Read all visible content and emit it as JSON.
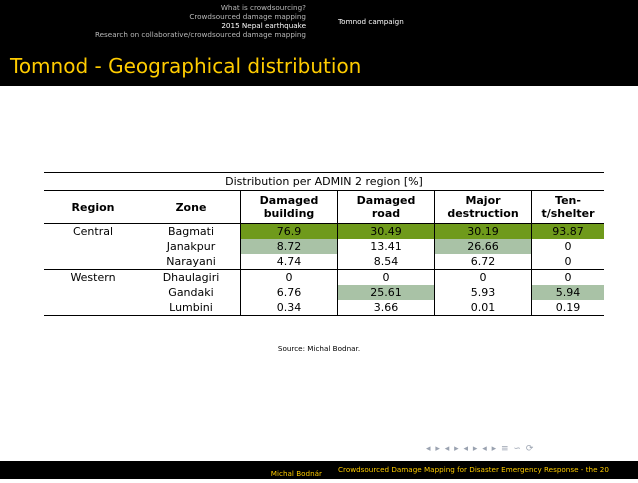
{
  "nav": {
    "sections": [
      {
        "label": "What is crowdsourcing?"
      },
      {
        "label": "Crowdsourced damage mapping"
      },
      {
        "label": "2015 Nepal earthquake"
      },
      {
        "label": "Research on collaborative/crowdsourced damage mapping"
      }
    ],
    "current_subsection": "Tomnod campaign"
  },
  "slide": {
    "title": "Tomnod - Geographical distribution",
    "source": "Source: Michal Bodnar."
  },
  "table": {
    "caption": "Distribution per ADMIN 2 region [%]",
    "headers": {
      "region": "Region",
      "zone": "Zone",
      "c1a": "Damaged",
      "c1b": "building",
      "c2a": "Damaged",
      "c2b": "road",
      "c3a": "Major",
      "c3b": "destruction",
      "c4a": "Ten-",
      "c4b": "t/shelter"
    },
    "rows": [
      {
        "region": "Central",
        "zone": "Bagmati",
        "building": "76.9",
        "road": "30.49",
        "major": "30.19",
        "tent": "93.87"
      },
      {
        "region": "",
        "zone": "Janakpur",
        "building": "8.72",
        "road": "13.41",
        "major": "26.66",
        "tent": "0"
      },
      {
        "region": "",
        "zone": "Narayani",
        "building": "4.74",
        "road": "8.54",
        "major": "6.72",
        "tent": "0"
      },
      {
        "region": "Western",
        "zone": "Dhaulagiri",
        "building": "0",
        "road": "0",
        "major": "0",
        "tent": "0"
      },
      {
        "region": "",
        "zone": "Gandaki",
        "building": "6.76",
        "road": "25.61",
        "major": "5.93",
        "tent": "5.94"
      },
      {
        "region": "",
        "zone": "Lumbini",
        "building": "0.34",
        "road": "3.66",
        "major": "0.01",
        "tent": "0.19"
      }
    ],
    "highlight_colors": {
      "max": "#6f9a1b",
      "second": "#a9c2a6"
    }
  },
  "footer": {
    "author": "Michal Bodnár",
    "title": "Crowdsourced Damage Mapping for Disaster Emergency Response - the 20"
  },
  "nav_symbols": "◂ ▸ ◂ ▸ ◂ ▸ ◂ ▸ ≡ ∽ ⟳"
}
